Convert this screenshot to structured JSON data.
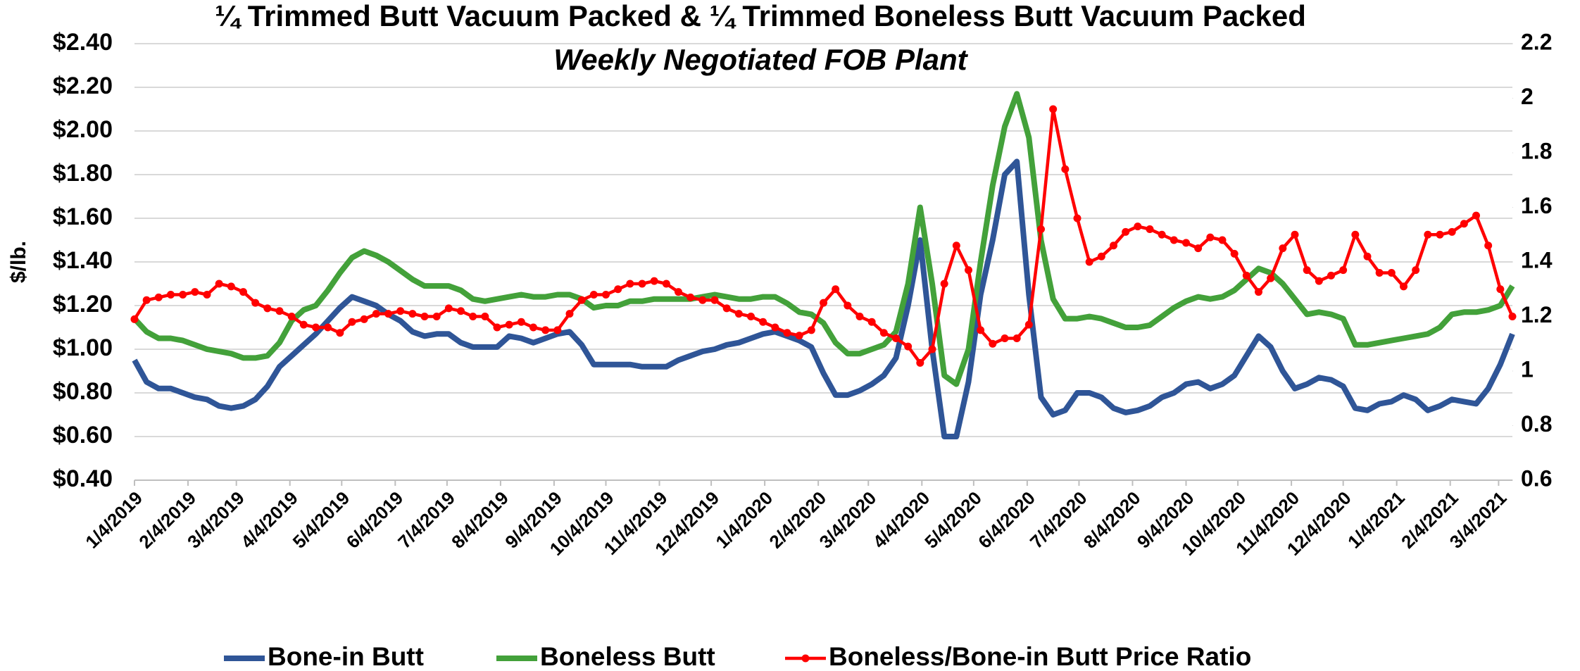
{
  "chart_data": {
    "type": "line",
    "title": "¼ Trimmed Butt Vacuum Packed & ¼ Trimmed Boneless Butt Vacuum Packed",
    "subtitle": "Weekly Negotiated FOB Plant",
    "y_label": "$/lb.",
    "legend": "bottom",
    "grid": true,
    "xlim": [
      "1/4/2019",
      "3/12/2021"
    ],
    "xticks": [
      "1/4/2019",
      "2/4/2019",
      "3/4/2019",
      "4/4/2019",
      "5/4/2019",
      "6/4/2019",
      "7/4/2019",
      "8/4/2019",
      "9/4/2019",
      "10/4/2019",
      "11/4/2019",
      "12/4/2019",
      "1/4/2020",
      "2/4/2020",
      "3/4/2020",
      "4/4/2020",
      "5/4/2020",
      "6/4/2020",
      "7/4/2020",
      "8/4/2020",
      "9/4/2020",
      "10/4/2020",
      "11/4/2020",
      "12/4/2020",
      "1/4/2021",
      "2/4/2021",
      "3/4/2021"
    ],
    "ylim": [
      0.4,
      2.4
    ],
    "yticks": [
      {
        "value": 0.4,
        "label": "$0.40"
      },
      {
        "value": 0.6,
        "label": "$0.60"
      },
      {
        "value": 0.8,
        "label": "$0.80"
      },
      {
        "value": 1.0,
        "label": "$1.00"
      },
      {
        "value": 1.2,
        "label": "$1.20"
      },
      {
        "value": 1.4,
        "label": "$1.40"
      },
      {
        "value": 1.6,
        "label": "$1.60"
      },
      {
        "value": 1.8,
        "label": "$1.80"
      },
      {
        "value": 2.0,
        "label": "$2.00"
      },
      {
        "value": 2.2,
        "label": "$2.20"
      },
      {
        "value": 2.4,
        "label": "$2.40"
      }
    ],
    "y2lim": [
      0.6,
      2.2
    ],
    "y2ticks": [
      0.6,
      0.8,
      1,
      1.2,
      1.4,
      1.6,
      1.8,
      2,
      2.2
    ],
    "x": [
      "1/4/2019",
      "1/11/2019",
      "1/18/2019",
      "1/25/2019",
      "2/1/2019",
      "2/8/2019",
      "2/15/2019",
      "2/22/2019",
      "3/1/2019",
      "3/8/2019",
      "3/15/2019",
      "3/22/2019",
      "3/29/2019",
      "4/5/2019",
      "4/12/2019",
      "4/19/2019",
      "4/26/2019",
      "5/3/2019",
      "5/10/2019",
      "5/17/2019",
      "5/24/2019",
      "5/31/2019",
      "6/7/2019",
      "6/14/2019",
      "6/21/2019",
      "6/28/2019",
      "7/5/2019",
      "7/12/2019",
      "7/19/2019",
      "7/26/2019",
      "8/2/2019",
      "8/9/2019",
      "8/16/2019",
      "8/23/2019",
      "8/30/2019",
      "9/6/2019",
      "9/13/2019",
      "9/20/2019",
      "9/27/2019",
      "10/4/2019",
      "10/11/2019",
      "10/18/2019",
      "10/25/2019",
      "11/1/2019",
      "11/8/2019",
      "11/15/2019",
      "11/22/2019",
      "11/29/2019",
      "12/6/2019",
      "12/13/2019",
      "12/20/2019",
      "12/27/2019",
      "1/3/2020",
      "1/10/2020",
      "1/17/2020",
      "1/24/2020",
      "1/31/2020",
      "2/7/2020",
      "2/14/2020",
      "2/21/2020",
      "2/28/2020",
      "3/6/2020",
      "3/13/2020",
      "3/20/2020",
      "3/27/2020",
      "4/3/2020",
      "4/10/2020",
      "4/17/2020",
      "4/24/2020",
      "5/1/2020",
      "5/8/2020",
      "5/15/2020",
      "5/22/2020",
      "5/29/2020",
      "6/5/2020",
      "6/12/2020",
      "6/19/2020",
      "6/26/2020",
      "7/3/2020",
      "7/10/2020",
      "7/17/2020",
      "7/24/2020",
      "7/31/2020",
      "8/7/2020",
      "8/14/2020",
      "8/21/2020",
      "8/28/2020",
      "9/4/2020",
      "9/11/2020",
      "9/18/2020",
      "9/25/2020",
      "10/2/2020",
      "10/9/2020",
      "10/16/2020",
      "10/23/2020",
      "10/30/2020",
      "11/6/2020",
      "11/13/2020",
      "11/20/2020",
      "11/27/2020",
      "12/4/2020",
      "12/11/2020",
      "12/18/2020",
      "12/25/2020",
      "1/1/2021",
      "1/8/2021",
      "1/15/2021",
      "1/22/2021",
      "1/29/2021",
      "2/5/2021",
      "2/12/2021",
      "2/19/2021",
      "2/26/2021",
      "3/5/2021",
      "3/12/2021"
    ],
    "series": [
      {
        "name": "Bone-in Butt",
        "color": "#2f5597",
        "values": [
          0.95,
          0.85,
          0.82,
          0.82,
          0.8,
          0.78,
          0.77,
          0.74,
          0.73,
          0.74,
          0.77,
          0.83,
          0.92,
          0.97,
          1.02,
          1.07,
          1.13,
          1.19,
          1.24,
          1.22,
          1.2,
          1.16,
          1.13,
          1.08,
          1.06,
          1.07,
          1.07,
          1.03,
          1.01,
          1.01,
          1.01,
          1.06,
          1.05,
          1.03,
          1.05,
          1.07,
          1.08,
          1.02,
          0.93,
          0.93,
          0.93,
          0.93,
          0.92,
          0.92,
          0.92,
          0.95,
          0.97,
          0.99,
          1.0,
          1.02,
          1.03,
          1.05,
          1.07,
          1.08,
          1.06,
          1.04,
          1.01,
          0.89,
          0.79,
          0.79,
          0.81,
          0.84,
          0.88,
          0.96,
          1.2,
          1.5,
          1.0,
          0.6,
          0.6,
          0.85,
          1.25,
          1.5,
          1.8,
          1.86,
          1.25,
          0.78,
          0.7,
          0.72,
          0.8,
          0.8,
          0.78,
          0.73,
          0.71,
          0.72,
          0.74,
          0.78,
          0.8,
          0.84,
          0.85,
          0.82,
          0.84,
          0.88,
          0.97,
          1.06,
          1.01,
          0.9,
          0.82,
          0.84,
          0.87,
          0.86,
          0.83,
          0.73,
          0.72,
          0.75,
          0.76,
          0.79,
          0.77,
          0.72,
          0.74,
          0.77,
          0.76,
          0.75,
          0.82,
          0.93,
          1.07
        ]
      },
      {
        "name": "Boneless Butt",
        "color": "#43a13a",
        "values": [
          1.14,
          1.08,
          1.05,
          1.05,
          1.04,
          1.02,
          1.0,
          0.99,
          0.98,
          0.96,
          0.96,
          0.97,
          1.03,
          1.13,
          1.18,
          1.2,
          1.27,
          1.35,
          1.42,
          1.45,
          1.43,
          1.4,
          1.36,
          1.32,
          1.29,
          1.29,
          1.29,
          1.27,
          1.23,
          1.22,
          1.23,
          1.24,
          1.25,
          1.24,
          1.24,
          1.25,
          1.25,
          1.23,
          1.19,
          1.2,
          1.2,
          1.22,
          1.22,
          1.23,
          1.23,
          1.23,
          1.23,
          1.24,
          1.25,
          1.24,
          1.23,
          1.23,
          1.24,
          1.24,
          1.21,
          1.17,
          1.16,
          1.12,
          1.03,
          0.98,
          0.98,
          1.0,
          1.02,
          1.08,
          1.3,
          1.65,
          1.3,
          0.88,
          0.84,
          1.0,
          1.4,
          1.75,
          2.02,
          2.17,
          1.97,
          1.5,
          1.23,
          1.14,
          1.14,
          1.15,
          1.14,
          1.12,
          1.1,
          1.1,
          1.11,
          1.15,
          1.19,
          1.22,
          1.24,
          1.23,
          1.24,
          1.27,
          1.32,
          1.37,
          1.35,
          1.3,
          1.23,
          1.16,
          1.17,
          1.16,
          1.14,
          1.02,
          1.02,
          1.03,
          1.04,
          1.05,
          1.06,
          1.07,
          1.1,
          1.16,
          1.17,
          1.17,
          1.18,
          1.2,
          1.29
        ]
      },
      {
        "name": "Boneless/Bone-in Butt Price Ratio",
        "color": "#ff0000",
        "axis": "y2",
        "marker": true,
        "values": [
          1.19,
          1.26,
          1.27,
          1.28,
          1.28,
          1.29,
          1.28,
          1.32,
          1.31,
          1.29,
          1.25,
          1.23,
          1.22,
          1.2,
          1.17,
          1.16,
          1.16,
          1.14,
          1.18,
          1.19,
          1.21,
          1.21,
          1.22,
          1.21,
          1.2,
          1.2,
          1.23,
          1.22,
          1.2,
          1.2,
          1.16,
          1.17,
          1.18,
          1.16,
          1.15,
          1.15,
          1.21,
          1.26,
          1.28,
          1.28,
          1.3,
          1.32,
          1.32,
          1.33,
          1.32,
          1.29,
          1.27,
          1.26,
          1.26,
          1.23,
          1.21,
          1.2,
          1.18,
          1.16,
          1.14,
          1.13,
          1.15,
          1.25,
          1.3,
          1.24,
          1.2,
          1.18,
          1.14,
          1.12,
          1.09,
          1.03,
          1.08,
          1.32,
          1.46,
          1.37,
          1.15,
          1.1,
          1.12,
          1.12,
          1.17,
          1.52,
          1.96,
          1.74,
          1.56,
          1.4,
          1.42,
          1.46,
          1.51,
          1.53,
          1.52,
          1.5,
          1.48,
          1.47,
          1.45,
          1.49,
          1.48,
          1.43,
          1.35,
          1.29,
          1.34,
          1.45,
          1.5,
          1.37,
          1.33,
          1.35,
          1.37,
          1.5,
          1.42,
          1.36,
          1.36,
          1.31,
          1.37,
          1.5,
          1.5,
          1.51,
          1.54,
          1.57,
          1.46,
          1.3,
          1.2
        ]
      }
    ]
  }
}
